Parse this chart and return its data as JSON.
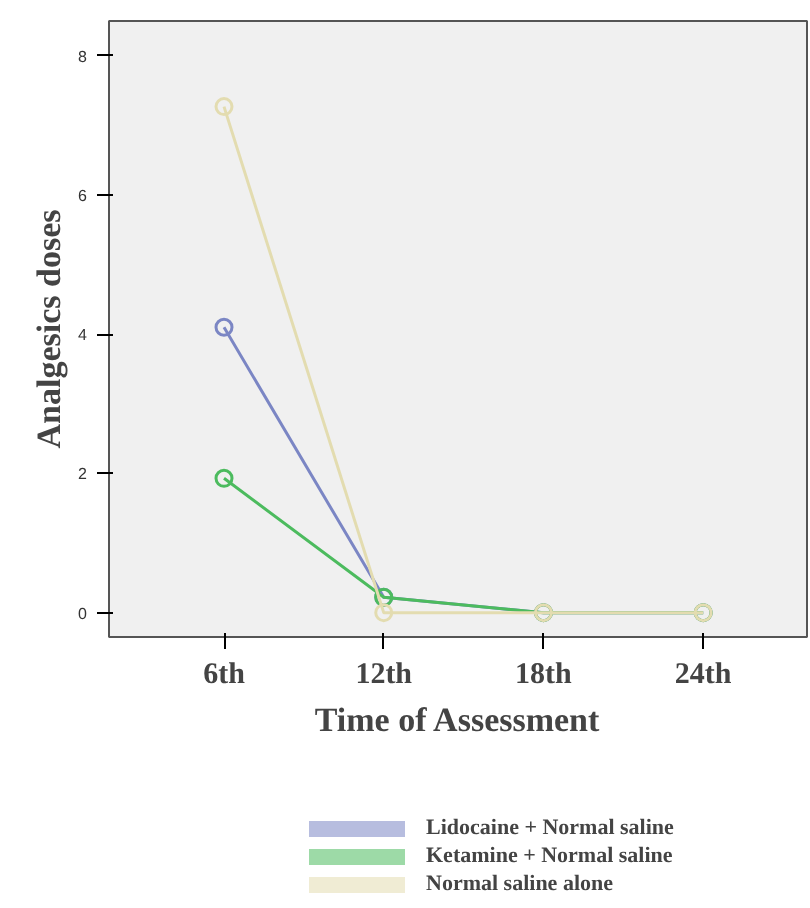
{
  "chart_data": {
    "type": "line",
    "xlabel": "Time of Assessment",
    "ylabel": "Analgesics doses",
    "categories": [
      "6th",
      "12th",
      "18th",
      "24th"
    ],
    "series": [
      {
        "name": "Lidocaine + Normal saline",
        "color": "#7b86c4",
        "values": [
          4.1,
          0.22,
          0,
          0
        ]
      },
      {
        "name": "Ketamine + Normal saline",
        "color": "#4cbb5e",
        "values": [
          1.93,
          0.22,
          0,
          0
        ]
      },
      {
        "name": "Normal saline alone",
        "color": "#e3dcb0",
        "values": [
          7.27,
          0,
          0,
          0
        ]
      }
    ],
    "ylim": [
      -0.35,
      8.5
    ],
    "yticks": [
      0,
      2,
      4,
      6,
      8
    ],
    "marker": "circle",
    "grid": false,
    "legend": "bottom"
  }
}
